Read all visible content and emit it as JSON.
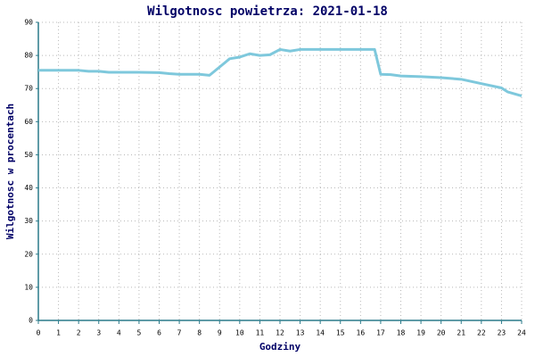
{
  "chart_data": {
    "type": "line",
    "title": "Wilgotnosc powietrza: 2021-01-18",
    "x_label": "Godziny",
    "y_label": "Wilgotnosc w procentach",
    "x": [
      0,
      2,
      2.5,
      3,
      3.5,
      5,
      6,
      6.5,
      7,
      8,
      8.5,
      9,
      9.5,
      10,
      10.5,
      11,
      11.5,
      12,
      12.5,
      13,
      16.7,
      17,
      17.5,
      18,
      19,
      20,
      21,
      22,
      23,
      23.3,
      24
    ],
    "values": [
      75.5,
      75.5,
      75.2,
      75.2,
      74.9,
      74.9,
      74.8,
      74.5,
      74.3,
      74.3,
      74.0,
      76.5,
      79,
      79.5,
      80.5,
      80.0,
      80.2,
      81.8,
      81.3,
      81.8,
      81.8,
      74.3,
      74.2,
      73.8,
      73.6,
      73.3,
      72.8,
      71.5,
      70.2,
      69,
      67.8
    ],
    "color": "#7ec8dc",
    "xlim": [
      0,
      24
    ],
    "xticks": [
      0,
      1,
      2,
      3,
      4,
      5,
      6,
      7,
      8,
      9,
      10,
      11,
      12,
      13,
      14,
      15,
      16,
      17,
      18,
      19,
      20,
      21,
      22,
      23,
      24
    ],
    "ylim": [
      0,
      90
    ],
    "yticks": [
      0,
      10,
      20,
      30,
      40,
      50,
      60,
      70,
      80,
      90
    ],
    "grid": true
  }
}
